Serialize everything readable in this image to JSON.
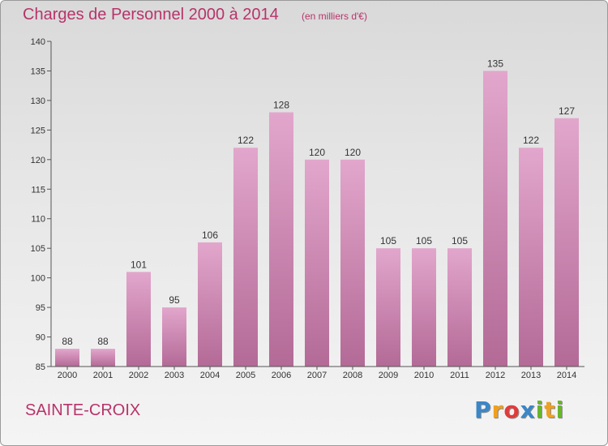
{
  "header": {
    "title": "Charges de Personnel 2000 à 2014",
    "subtitle": "(en milliers d'€)"
  },
  "footer": {
    "commune": "SAINTE-CROIX",
    "logo_letters": [
      {
        "ch": "P",
        "color": "#3b86c7"
      },
      {
        "ch": "r",
        "color": "#f0a020"
      },
      {
        "ch": "o",
        "color": "#e23b3b"
      },
      {
        "ch": "x",
        "color": "#3b86c7"
      },
      {
        "ch": "i",
        "color": "#68b52d"
      },
      {
        "ch": "t",
        "color": "#f0a020"
      },
      {
        "ch": "i",
        "color": "#68b52d"
      }
    ]
  },
  "chart_data": {
    "type": "bar",
    "title": "Charges de Personnel 2000 à 2014",
    "subtitle": "(en milliers d'€)",
    "categories": [
      "2000",
      "2001",
      "2002",
      "2003",
      "2004",
      "2005",
      "2006",
      "2007",
      "2008",
      "2009",
      "2010",
      "2011",
      "2012",
      "2013",
      "2014"
    ],
    "values": [
      88,
      88,
      101,
      95,
      106,
      122,
      128,
      120,
      120,
      105,
      105,
      105,
      135,
      122,
      127
    ],
    "ylim": [
      85,
      140
    ],
    "yticks": [
      85,
      90,
      95,
      100,
      105,
      110,
      115,
      120,
      125,
      130,
      135,
      140
    ],
    "grid": false,
    "bar_color_top": "#e2a6cc",
    "bar_color_bottom": "#b36a96",
    "value_labels": true
  }
}
